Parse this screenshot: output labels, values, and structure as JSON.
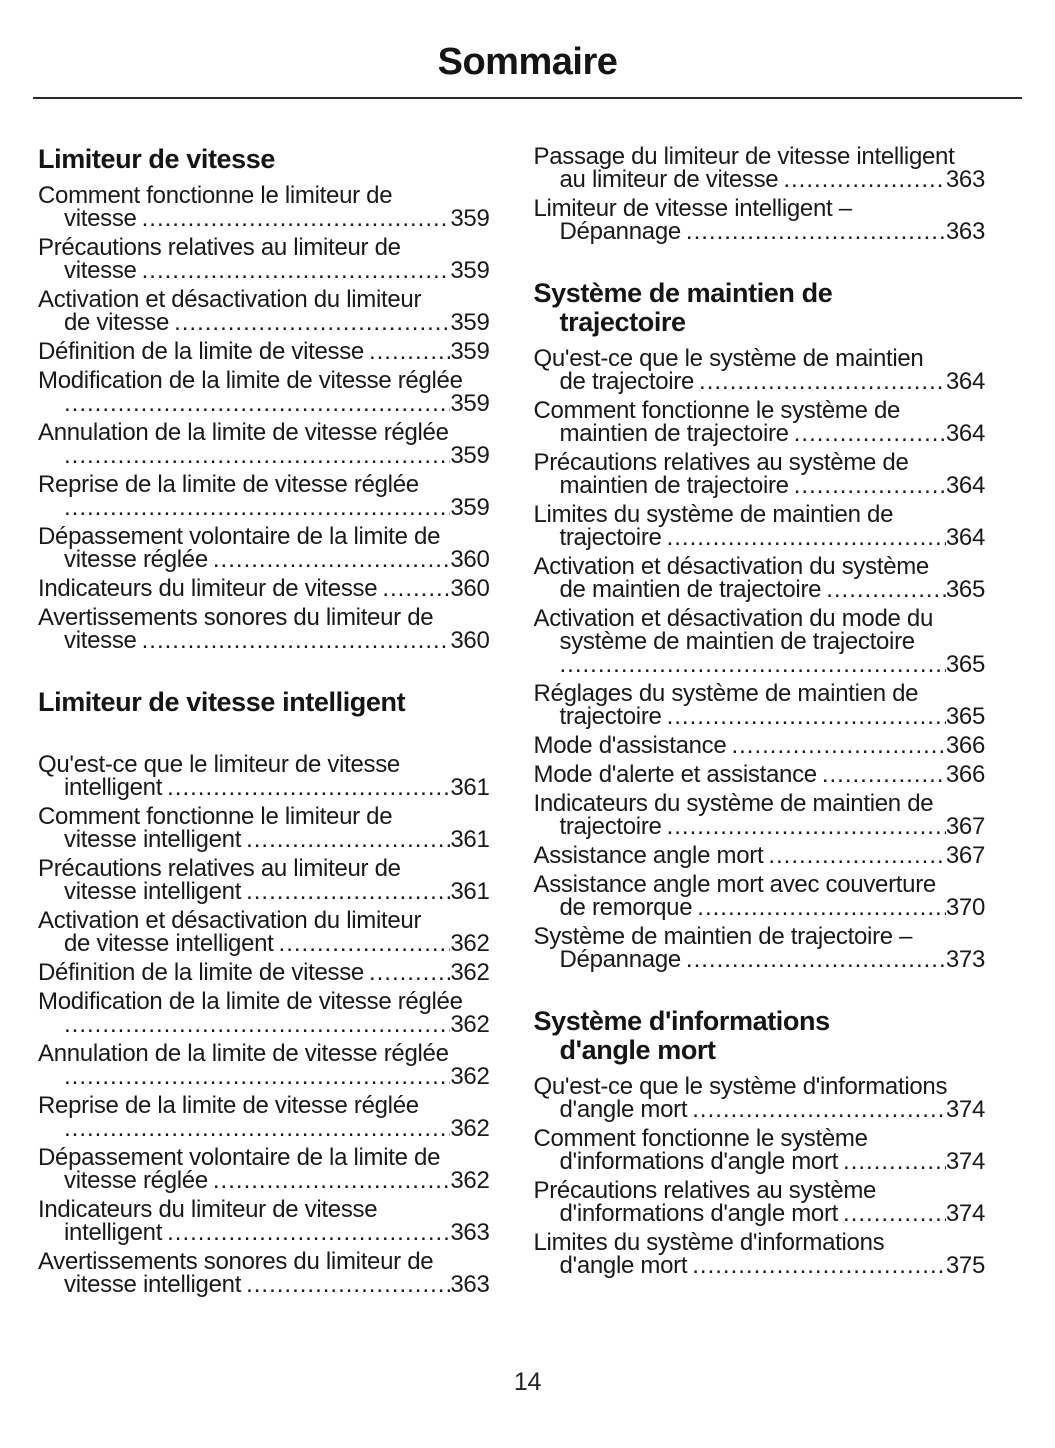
{
  "title": "Sommaire",
  "page_number": "14",
  "columns": {
    "left": [
      {
        "type": "heading",
        "lines": [
          "Limiteur de vitesse"
        ]
      },
      {
        "type": "entry",
        "pre": [
          "Comment fonctionne le limiteur de"
        ],
        "last": "vitesse",
        "page": "359"
      },
      {
        "type": "entry",
        "pre": [
          "Précautions relatives au limiteur de"
        ],
        "last": "vitesse",
        "page": "359"
      },
      {
        "type": "entry",
        "pre": [
          "Activation et désactivation du limiteur"
        ],
        "last": "de vitesse",
        "page": "359"
      },
      {
        "type": "entry",
        "pre": [],
        "last": "Définition de la limite de vitesse",
        "page": "359"
      },
      {
        "type": "entry",
        "pre": [
          "Modification de la limite de vitesse réglée"
        ],
        "last": "",
        "page": "359"
      },
      {
        "type": "entry",
        "pre": [
          "Annulation de la limite de vitesse réglée"
        ],
        "last": "",
        "page": "359"
      },
      {
        "type": "entry",
        "pre": [
          "Reprise de la limite de vitesse réglée"
        ],
        "last": "",
        "page": "359"
      },
      {
        "type": "entry",
        "pre": [
          "Dépassement volontaire de la limite de"
        ],
        "last": "vitesse réglée",
        "page": "360"
      },
      {
        "type": "entry",
        "pre": [],
        "last": "Indicateurs du limiteur de vitesse",
        "page": "360"
      },
      {
        "type": "entry",
        "pre": [
          "Avertissements sonores du limiteur de"
        ],
        "last": "vitesse",
        "page": "360"
      },
      {
        "type": "heading",
        "lines": [
          "Limiteur de vitesse intelligent"
        ],
        "space_after": true
      },
      {
        "type": "entry",
        "pre": [
          "Qu'est-ce que le limiteur de vitesse"
        ],
        "last": "intelligent",
        "page": "361"
      },
      {
        "type": "entry",
        "pre": [
          "Comment fonctionne le limiteur de"
        ],
        "last": "vitesse intelligent",
        "page": "361"
      },
      {
        "type": "entry",
        "pre": [
          "Précautions relatives au limiteur de"
        ],
        "last": "vitesse intelligent",
        "page": "361"
      },
      {
        "type": "entry",
        "pre": [
          "Activation et désactivation du limiteur"
        ],
        "last": "de vitesse intelligent",
        "page": "362"
      },
      {
        "type": "entry",
        "pre": [],
        "last": "Définition de la limite de vitesse",
        "page": "362"
      },
      {
        "type": "entry",
        "pre": [
          "Modification de la limite de vitesse réglée"
        ],
        "last": "",
        "page": "362"
      },
      {
        "type": "entry",
        "pre": [
          "Annulation de la limite de vitesse réglée"
        ],
        "last": "",
        "page": "362"
      },
      {
        "type": "entry",
        "pre": [
          "Reprise de la limite de vitesse réglée"
        ],
        "last": "",
        "page": "362"
      },
      {
        "type": "entry",
        "pre": [
          "Dépassement volontaire de la limite de"
        ],
        "last": "vitesse réglée",
        "page": "362"
      },
      {
        "type": "entry",
        "pre": [
          "Indicateurs du limiteur de vitesse"
        ],
        "last": "intelligent",
        "page": "363"
      },
      {
        "type": "entry",
        "pre": [
          "Avertissements sonores du limiteur de"
        ],
        "last": "vitesse intelligent",
        "page": "363"
      }
    ],
    "right": [
      {
        "type": "entry",
        "pre": [
          "Passage du limiteur de vitesse intelligent"
        ],
        "last": "au limiteur de vitesse",
        "page": "363"
      },
      {
        "type": "entry",
        "pre": [
          "Limiteur de vitesse intelligent –"
        ],
        "last": "Dépannage",
        "page": "363"
      },
      {
        "type": "heading",
        "lines": [
          "Système de maintien de",
          "trajectoire"
        ]
      },
      {
        "type": "entry",
        "pre": [
          "Qu'est-ce que le système de maintien"
        ],
        "last": "de trajectoire",
        "page": "364"
      },
      {
        "type": "entry",
        "pre": [
          "Comment fonctionne le système de"
        ],
        "last": "maintien de trajectoire",
        "page": "364"
      },
      {
        "type": "entry",
        "pre": [
          "Précautions relatives au système de"
        ],
        "last": "maintien de trajectoire",
        "page": "364"
      },
      {
        "type": "entry",
        "pre": [
          "Limites du système de maintien de"
        ],
        "last": "trajectoire",
        "page": "364"
      },
      {
        "type": "entry",
        "pre": [
          "Activation et désactivation du système"
        ],
        "last": "de maintien de trajectoire",
        "page": "365"
      },
      {
        "type": "entry",
        "pre": [
          "Activation et désactivation du mode du",
          "système de maintien de trajectoire"
        ],
        "last": "",
        "page": "365"
      },
      {
        "type": "entry",
        "pre": [
          "Réglages du système de maintien de"
        ],
        "last": "trajectoire",
        "page": "365"
      },
      {
        "type": "entry",
        "pre": [],
        "last": "Mode d'assistance",
        "page": "366"
      },
      {
        "type": "entry",
        "pre": [],
        "last": "Mode d'alerte et assistance",
        "page": "366"
      },
      {
        "type": "entry",
        "pre": [
          "Indicateurs du système de maintien de"
        ],
        "last": "trajectoire",
        "page": "367"
      },
      {
        "type": "entry",
        "pre": [],
        "last": "Assistance angle mort",
        "page": "367"
      },
      {
        "type": "entry",
        "pre": [
          "Assistance angle mort avec couverture"
        ],
        "last": "de remorque",
        "page": "370"
      },
      {
        "type": "entry",
        "pre": [
          "Système de maintien de trajectoire –"
        ],
        "last": "Dépannage",
        "page": "373"
      },
      {
        "type": "heading",
        "lines": [
          "Système d'informations",
          "d'angle mort"
        ]
      },
      {
        "type": "entry",
        "pre": [
          "Qu'est-ce que le système d'informations"
        ],
        "last": "d'angle mort",
        "page": "374"
      },
      {
        "type": "entry",
        "pre": [
          "Comment fonctionne le système"
        ],
        "last": "d'informations d'angle mort",
        "page": "374"
      },
      {
        "type": "entry",
        "pre": [
          "Précautions relatives au système"
        ],
        "last": "d'informations d'angle mort",
        "page": "374"
      },
      {
        "type": "entry",
        "pre": [
          "Limites du système d'informations"
        ],
        "last": "d'angle mort",
        "page": "375"
      }
    ]
  }
}
